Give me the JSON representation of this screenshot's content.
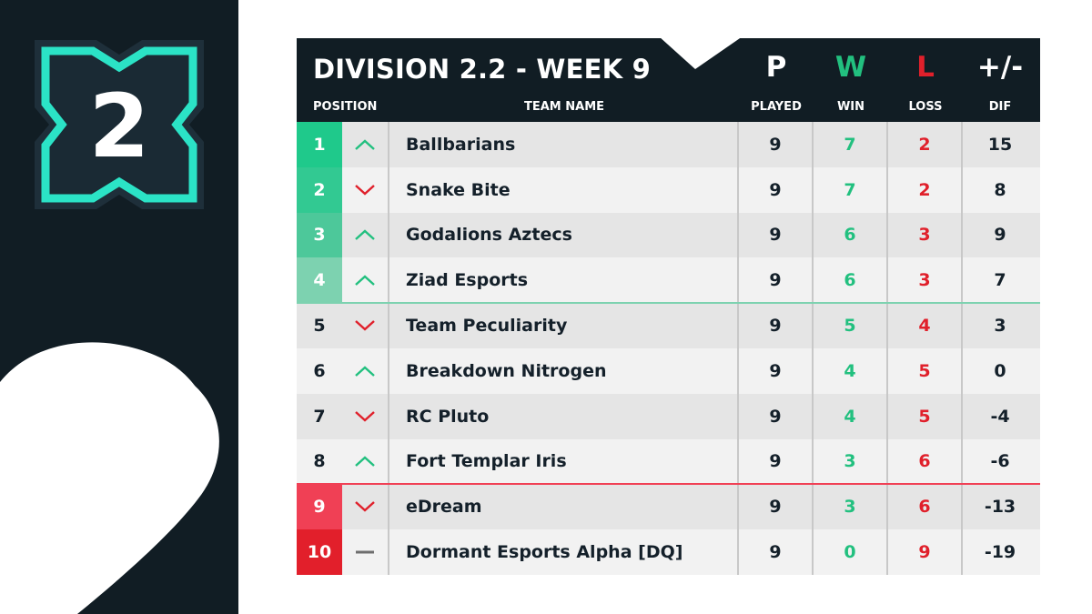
{
  "brand": {
    "logo_number": "2",
    "colors": {
      "dark": "#111d24",
      "teal": "#2be3c6",
      "green": "#22c07f",
      "red": "#e0202b"
    }
  },
  "table": {
    "title": "DIVISION 2.2 - WEEK 9",
    "columns": {
      "position": "POSITION",
      "team": "TEAM NAME",
      "played_abbr": "P",
      "played": "PLAYED",
      "win_abbr": "W",
      "win": "WIN",
      "loss_abbr": "L",
      "loss": "LOSS",
      "dif_abbr": "+/-",
      "dif": "DIF"
    },
    "rows": [
      {
        "position": "1",
        "trend": "up",
        "team": "Ballbarians",
        "played": "9",
        "win": "7",
        "loss": "2",
        "dif": "15",
        "zone_color": "#1fc98b"
      },
      {
        "position": "2",
        "trend": "down",
        "team": "Snake Bite",
        "played": "9",
        "win": "7",
        "loss": "2",
        "dif": "8",
        "zone_color": "#32c992"
      },
      {
        "position": "3",
        "trend": "up",
        "team": "Godalions Aztecs",
        "played": "9",
        "win": "6",
        "loss": "3",
        "dif": "9",
        "zone_color": "#4dc89a"
      },
      {
        "position": "4",
        "trend": "up",
        "team": "Ziad Esports",
        "played": "9",
        "win": "6",
        "loss": "3",
        "dif": "7",
        "zone_color": "#7dd2b0"
      },
      {
        "position": "5",
        "trend": "down",
        "team": "Team Peculiarity",
        "played": "9",
        "win": "5",
        "loss": "4",
        "dif": "3",
        "zone_color": ""
      },
      {
        "position": "6",
        "trend": "up",
        "team": "Breakdown Nitrogen",
        "played": "9",
        "win": "4",
        "loss": "5",
        "dif": "0",
        "zone_color": ""
      },
      {
        "position": "7",
        "trend": "down",
        "team": "RC Pluto",
        "played": "9",
        "win": "4",
        "loss": "5",
        "dif": "-4",
        "zone_color": ""
      },
      {
        "position": "8",
        "trend": "up",
        "team": "Fort Templar Iris",
        "played": "9",
        "win": "3",
        "loss": "6",
        "dif": "-6",
        "zone_color": ""
      },
      {
        "position": "9",
        "trend": "down",
        "team": "eDream",
        "played": "9",
        "win": "3",
        "loss": "6",
        "dif": "-13",
        "zone_color": "#f04055"
      },
      {
        "position": "10",
        "trend": "same",
        "team": "Dormant Esports Alpha [DQ]",
        "played": "9",
        "win": "0",
        "loss": "9",
        "dif": "-19",
        "zone_color": "#e21f2b"
      }
    ]
  }
}
